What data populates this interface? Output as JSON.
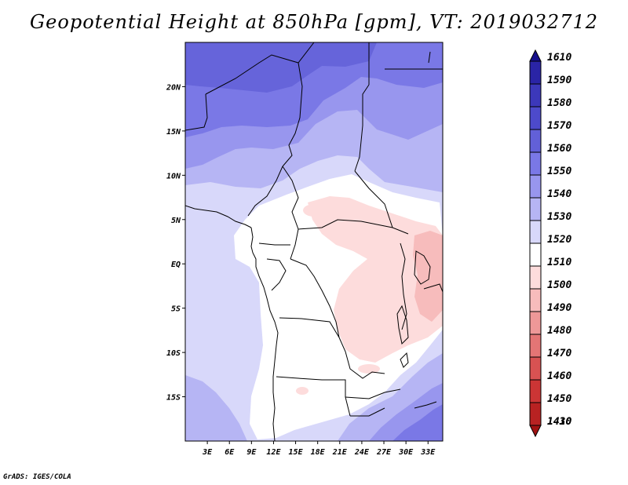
{
  "title": "Geopotential Height at 850hPa [gpm], VT: 2019032712",
  "footer": "GrADS: IGES/COLA",
  "map": {
    "lat_range": [
      -20,
      25
    ],
    "lon_range": [
      0,
      35
    ],
    "lat_ticks": [
      {
        "value": 20,
        "label": "20N"
      },
      {
        "value": 15,
        "label": "15N"
      },
      {
        "value": 10,
        "label": "10N"
      },
      {
        "value": 5,
        "label": "5N"
      },
      {
        "value": 0,
        "label": "EQ"
      },
      {
        "value": -5,
        "label": "5S"
      },
      {
        "value": -10,
        "label": "10S"
      },
      {
        "value": -15,
        "label": "15S"
      }
    ],
    "lon_ticks": [
      {
        "value": 3,
        "label": "3E"
      },
      {
        "value": 6,
        "label": "6E"
      },
      {
        "value": 9,
        "label": "9E"
      },
      {
        "value": 12,
        "label": "12E"
      },
      {
        "value": 15,
        "label": "15E"
      },
      {
        "value": 18,
        "label": "18E"
      },
      {
        "value": 21,
        "label": "21E"
      },
      {
        "value": 24,
        "label": "24E"
      },
      {
        "value": 27,
        "label": "27E"
      },
      {
        "value": 30,
        "label": "30E"
      },
      {
        "value": 33,
        "label": "33E"
      }
    ]
  },
  "colorbar": {
    "levels": [
      {
        "label": "1610",
        "color": "#16108c"
      },
      {
        "label": "1590",
        "color": "#2a24a6"
      },
      {
        "label": "1580",
        "color": "#3c38ba"
      },
      {
        "label": "1570",
        "color": "#4d4acb"
      },
      {
        "label": "1560",
        "color": "#6260d8"
      },
      {
        "label": "1550",
        "color": "#7a78e6"
      },
      {
        "label": "1540",
        "color": "#9896ee"
      },
      {
        "label": "1530",
        "color": "#b6b5f4"
      },
      {
        "label": "1520",
        "color": "#d8d8fa"
      },
      {
        "label": "1510",
        "color": "#ffffff"
      },
      {
        "label": "1500",
        "color": "#fddcdc"
      },
      {
        "label": "1490",
        "color": "#f7bcbc"
      },
      {
        "label": "1480",
        "color": "#ee9898"
      },
      {
        "label": "1470",
        "color": "#e47575"
      },
      {
        "label": "1460",
        "color": "#d85252"
      },
      {
        "label": "1450",
        "color": "#cc3535"
      },
      {
        "label": "1430",
        "color": "#b82222"
      },
      {
        "label": "1410",
        "color": "#a01212"
      }
    ]
  }
}
